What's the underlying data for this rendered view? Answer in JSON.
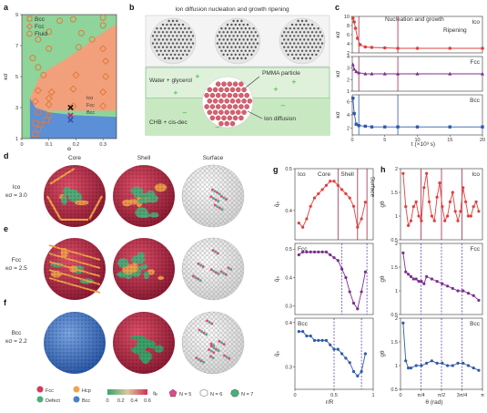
{
  "panels": {
    "a": "a",
    "b": "b",
    "c": "c",
    "d": "d",
    "e": "e",
    "f": "f",
    "g": "g",
    "h": "h"
  },
  "panel_a": {
    "legend": [
      "Bcc",
      "Fcc",
      "Fluid"
    ],
    "inner_legend": [
      "Ico",
      "Fcc",
      "Bcc"
    ],
    "colors": {
      "bcc_region": "#5b8fd6",
      "fcc_region": "#f2a07c",
      "fluid_region": "#8fd49a",
      "marker": "#e07a3c",
      "ico": "#111111",
      "fcc_x": "#b03060",
      "bcc_x": "#3a50b0"
    }
  },
  "panel_b": {
    "top_caption": "Ion diffusion nucleation and growth ripening",
    "label_water": "Water + glycerol",
    "label_pmma": "PMMA particle",
    "label_chb": "CHB + cis-dec",
    "label_ion": "Ion diffusion"
  },
  "panel_c": {
    "phase1": "Nucleation and growth",
    "phase2": "Ripening",
    "xlabel": "t (×10³ s)",
    "ylabel": "κσ"
  },
  "panel_d": {
    "col_core": "Core",
    "col_shell": "Shell",
    "col_surface": "Surface",
    "row_name": "Ico",
    "row_val": "κσ = 3.0"
  },
  "panel_e": {
    "row_name": "Fcc",
    "row_val": "κσ = 2.5"
  },
  "panel_f": {
    "row_name": "Bcc",
    "row_val": "κσ = 2.2"
  },
  "legend_bottom": {
    "fcc": "Fcc",
    "hcp": "Hcp",
    "defect": "Defect",
    "bcc": "Bcc",
    "cbar_ticks": [
      "0",
      "0.2",
      "0.4",
      "0.6"
    ],
    "cbar_label": "q̄₆",
    "n5": "N = 5",
    "n6": "N = 6",
    "n7": "N = 7"
  },
  "panel_g_labels": {
    "ico": "Ico",
    "fcc": "Fcc",
    "bcc": "Bcc",
    "core": "Core",
    "shell": "Shell",
    "surface": "Surface",
    "xlabel": "r/R",
    "ylabel": "q̄₆"
  },
  "panel_h_labels": {
    "ico": "Ico",
    "fcc": "Fcc",
    "bcc": "Bcc",
    "xlabel": "θ (rad)",
    "ylabel": "gθ"
  },
  "chart_data": [
    {
      "id": "a",
      "type": "scatter",
      "xlabel": "φ",
      "ylabel": "κσ",
      "xlim": [
        0,
        0.35
      ],
      "ylim": [
        1,
        9
      ],
      "xticks": [
        0,
        0.1,
        0.2,
        0.3
      ],
      "yticks": [
        1,
        3,
        5,
        7,
        9
      ],
      "series": [
        {
          "name": "Bcc",
          "marker": "square",
          "points": [
            [
              0.05,
              1.3
            ],
            [
              0.06,
              1.6
            ],
            [
              0.07,
              1.9
            ],
            [
              0.09,
              2.2
            ],
            [
              0.05,
              2.0
            ],
            [
              0.1,
              2.5
            ],
            [
              0.06,
              2.7
            ]
          ]
        },
        {
          "name": "Fcc",
          "marker": "diamond",
          "points": [
            [
              0.1,
              3.2
            ],
            [
              0.1,
              3.6
            ],
            [
              0.11,
              4.0
            ],
            [
              0.19,
              3.1
            ],
            [
              0.19,
              4.2
            ],
            [
              0.2,
              5.1
            ],
            [
              0.3,
              3.1
            ],
            [
              0.3,
              4.0
            ],
            [
              0.31,
              5.0
            ],
            [
              0.31,
              6.0
            ],
            [
              0.3,
              6.8
            ],
            [
              0.05,
              3.4
            ],
            [
              0.06,
              4.1
            ]
          ]
        },
        {
          "name": "Fluid",
          "marker": "circle",
          "points": [
            [
              0.04,
              6.2
            ],
            [
              0.06,
              5.6
            ],
            [
              0.08,
              5.1
            ],
            [
              0.1,
              6.8
            ],
            [
              0.06,
              7.4
            ],
            [
              0.1,
              7.9
            ],
            [
              0.14,
              8.6
            ],
            [
              0.21,
              6.9
            ],
            [
              0.26,
              7.4
            ],
            [
              0.22,
              7.8
            ],
            [
              0.3,
              8.3
            ],
            [
              0.3,
              8.8
            ],
            [
              0.19,
              8.7
            ]
          ]
        },
        {
          "name": "Ico",
          "marker": "x",
          "points": [
            [
              0.18,
              3.0
            ]
          ]
        },
        {
          "name": "Fcc",
          "marker": "x",
          "points": [
            [
              0.18,
              2.5
            ]
          ]
        },
        {
          "name": "Bcc",
          "marker": "x",
          "points": [
            [
              0.18,
              2.2
            ]
          ]
        }
      ],
      "regions": [
        "Bcc (low κσ)",
        "Fcc (middle)",
        "Fluid (high)"
      ]
    },
    {
      "id": "c",
      "type": "line",
      "xlabel": "t (×10³ s)",
      "xlim": [
        0,
        20
      ],
      "xticks": [
        0,
        5,
        10,
        15,
        20
      ],
      "vlines": [
        1,
        7
      ],
      "subplots": [
        {
          "name": "Ico",
          "ylim": [
            2,
            10
          ],
          "yticks": [
            2,
            4,
            6,
            8,
            10
          ],
          "x": [
            0.1,
            0.3,
            0.5,
            0.8,
            1.2,
            2,
            3,
            5,
            7,
            10,
            15,
            20
          ],
          "y": [
            9.6,
            8.8,
            7.4,
            5.2,
            3.8,
            3.3,
            3.2,
            3.1,
            3.0,
            3.0,
            3.0,
            3.0
          ]
        },
        {
          "name": "Fcc",
          "ylim": [
            1,
            4
          ],
          "yticks": [
            1,
            2,
            3,
            4
          ],
          "x": [
            0.1,
            0.3,
            0.6,
            1,
            2,
            3,
            5,
            7,
            10,
            15,
            20
          ],
          "y": [
            3.3,
            2.9,
            2.7,
            2.6,
            2.5,
            2.5,
            2.5,
            2.5,
            2.5,
            2.5,
            2.5
          ]
        },
        {
          "name": "Bcc",
          "ylim": [
            1,
            7
          ],
          "yticks": [
            2,
            4,
            6
          ],
          "x": [
            0.1,
            0.3,
            0.6,
            1,
            2,
            3,
            5,
            7,
            10,
            15,
            20
          ],
          "y": [
            6.5,
            4.2,
            2.6,
            2.4,
            2.3,
            2.2,
            2.2,
            2.2,
            2.2,
            2.2,
            2.2
          ]
        }
      ]
    },
    {
      "id": "g",
      "type": "line",
      "xlabel": "r/R",
      "xlim": [
        0,
        1
      ],
      "xticks": [
        0,
        0.5,
        1
      ],
      "subplots": [
        {
          "name": "Ico",
          "ylim": [
            0.33,
            0.5
          ],
          "yticks": [
            0.4,
            0.5
          ],
          "vlines": [
            0.55,
            0.8,
            0.92
          ],
          "x": [
            0.05,
            0.1,
            0.15,
            0.2,
            0.25,
            0.3,
            0.35,
            0.4,
            0.45,
            0.5,
            0.55,
            0.6,
            0.65,
            0.7,
            0.75,
            0.8,
            0.85,
            0.9
          ],
          "y": [
            0.37,
            0.36,
            0.38,
            0.41,
            0.43,
            0.44,
            0.45,
            0.46,
            0.47,
            0.47,
            0.46,
            0.45,
            0.44,
            0.43,
            0.41,
            0.36,
            0.38,
            0.42
          ]
        },
        {
          "name": "Fcc",
          "ylim": [
            0.27,
            0.52
          ],
          "yticks": [
            0.3,
            0.4,
            0.5
          ],
          "vlines": [
            0.6,
            0.92
          ],
          "x": [
            0.05,
            0.1,
            0.15,
            0.2,
            0.25,
            0.3,
            0.35,
            0.4,
            0.45,
            0.5,
            0.55,
            0.6,
            0.65,
            0.7,
            0.75,
            0.8,
            0.85,
            0.9
          ],
          "y": [
            0.48,
            0.49,
            0.49,
            0.49,
            0.49,
            0.49,
            0.49,
            0.49,
            0.48,
            0.47,
            0.46,
            0.43,
            0.4,
            0.35,
            0.31,
            0.29,
            0.35,
            0.42
          ]
        },
        {
          "name": "Bcc",
          "ylim": [
            0.25,
            0.41
          ],
          "yticks": [
            0.3,
            0.4
          ],
          "vlines": [
            0.5,
            0.85
          ],
          "x": [
            0.05,
            0.1,
            0.15,
            0.2,
            0.25,
            0.3,
            0.35,
            0.4,
            0.45,
            0.5,
            0.55,
            0.6,
            0.65,
            0.7,
            0.75,
            0.8,
            0.85,
            0.9
          ],
          "y": [
            0.38,
            0.38,
            0.37,
            0.37,
            0.36,
            0.36,
            0.36,
            0.36,
            0.35,
            0.34,
            0.34,
            0.33,
            0.32,
            0.31,
            0.29,
            0.28,
            0.29,
            0.33
          ]
        }
      ]
    },
    {
      "id": "h",
      "type": "line",
      "xlabel": "θ (rad)",
      "xlim": [
        0,
        3.1416
      ],
      "xticklabels": [
        "0",
        "π/4",
        "π/2",
        "3π/4",
        "π"
      ],
      "vlines": [
        0.785,
        1.571,
        2.356
      ],
      "subplots": [
        {
          "name": "Ico",
          "ylim": [
            0.5,
            2.0
          ],
          "yticks": [
            0.5,
            1.0,
            1.5,
            2.0
          ],
          "x": [
            0.1,
            0.2,
            0.3,
            0.4,
            0.5,
            0.6,
            0.7,
            0.8,
            0.9,
            1.0,
            1.1,
            1.2,
            1.3,
            1.4,
            1.5,
            1.6,
            1.7,
            1.8,
            1.9,
            2.0,
            2.1,
            2.2,
            2.3,
            2.4,
            2.5,
            2.6,
            2.7,
            2.8,
            2.9,
            3.0
          ],
          "y": [
            1.9,
            1.2,
            0.8,
            0.9,
            1.2,
            1.3,
            1.0,
            0.9,
            1.6,
            1.9,
            1.3,
            1.0,
            0.9,
            1.4,
            1.7,
            1.2,
            0.9,
            1.0,
            1.3,
            1.5,
            1.1,
            0.9,
            1.1,
            1.6,
            1.3,
            1.0,
            1.0,
            1.2,
            1.3,
            1.1
          ]
        },
        {
          "name": "Fcc",
          "ylim": [
            0.5,
            2.0
          ],
          "yticks": [
            0.5,
            1.0,
            1.5,
            2.0
          ],
          "x": [
            0.1,
            0.2,
            0.3,
            0.4,
            0.5,
            0.6,
            0.7,
            0.8,
            0.9,
            1.0,
            1.2,
            1.4,
            1.6,
            1.8,
            2.0,
            2.2,
            2.4,
            2.6,
            2.8,
            3.0
          ],
          "y": [
            1.8,
            1.4,
            1.35,
            1.3,
            1.25,
            1.25,
            1.2,
            1.2,
            1.15,
            1.3,
            1.25,
            1.2,
            1.15,
            1.1,
            1.05,
            1.0,
            1.0,
            0.95,
            0.9,
            0.8
          ]
        },
        {
          "name": "Bcc",
          "ylim": [
            0.5,
            2.0
          ],
          "yticks": [
            0.5,
            1.0,
            1.5,
            2.0
          ],
          "x": [
            0.1,
            0.2,
            0.3,
            0.4,
            0.6,
            0.8,
            1.0,
            1.2,
            1.4,
            1.6,
            1.8,
            2.0,
            2.2,
            2.4,
            2.6,
            2.8,
            3.0
          ],
          "y": [
            1.9,
            1.1,
            0.95,
            0.95,
            1.0,
            1.0,
            1.05,
            1.1,
            1.05,
            1.05,
            1.0,
            1.0,
            1.05,
            1.05,
            1.0,
            0.95,
            0.9
          ]
        }
      ]
    }
  ]
}
